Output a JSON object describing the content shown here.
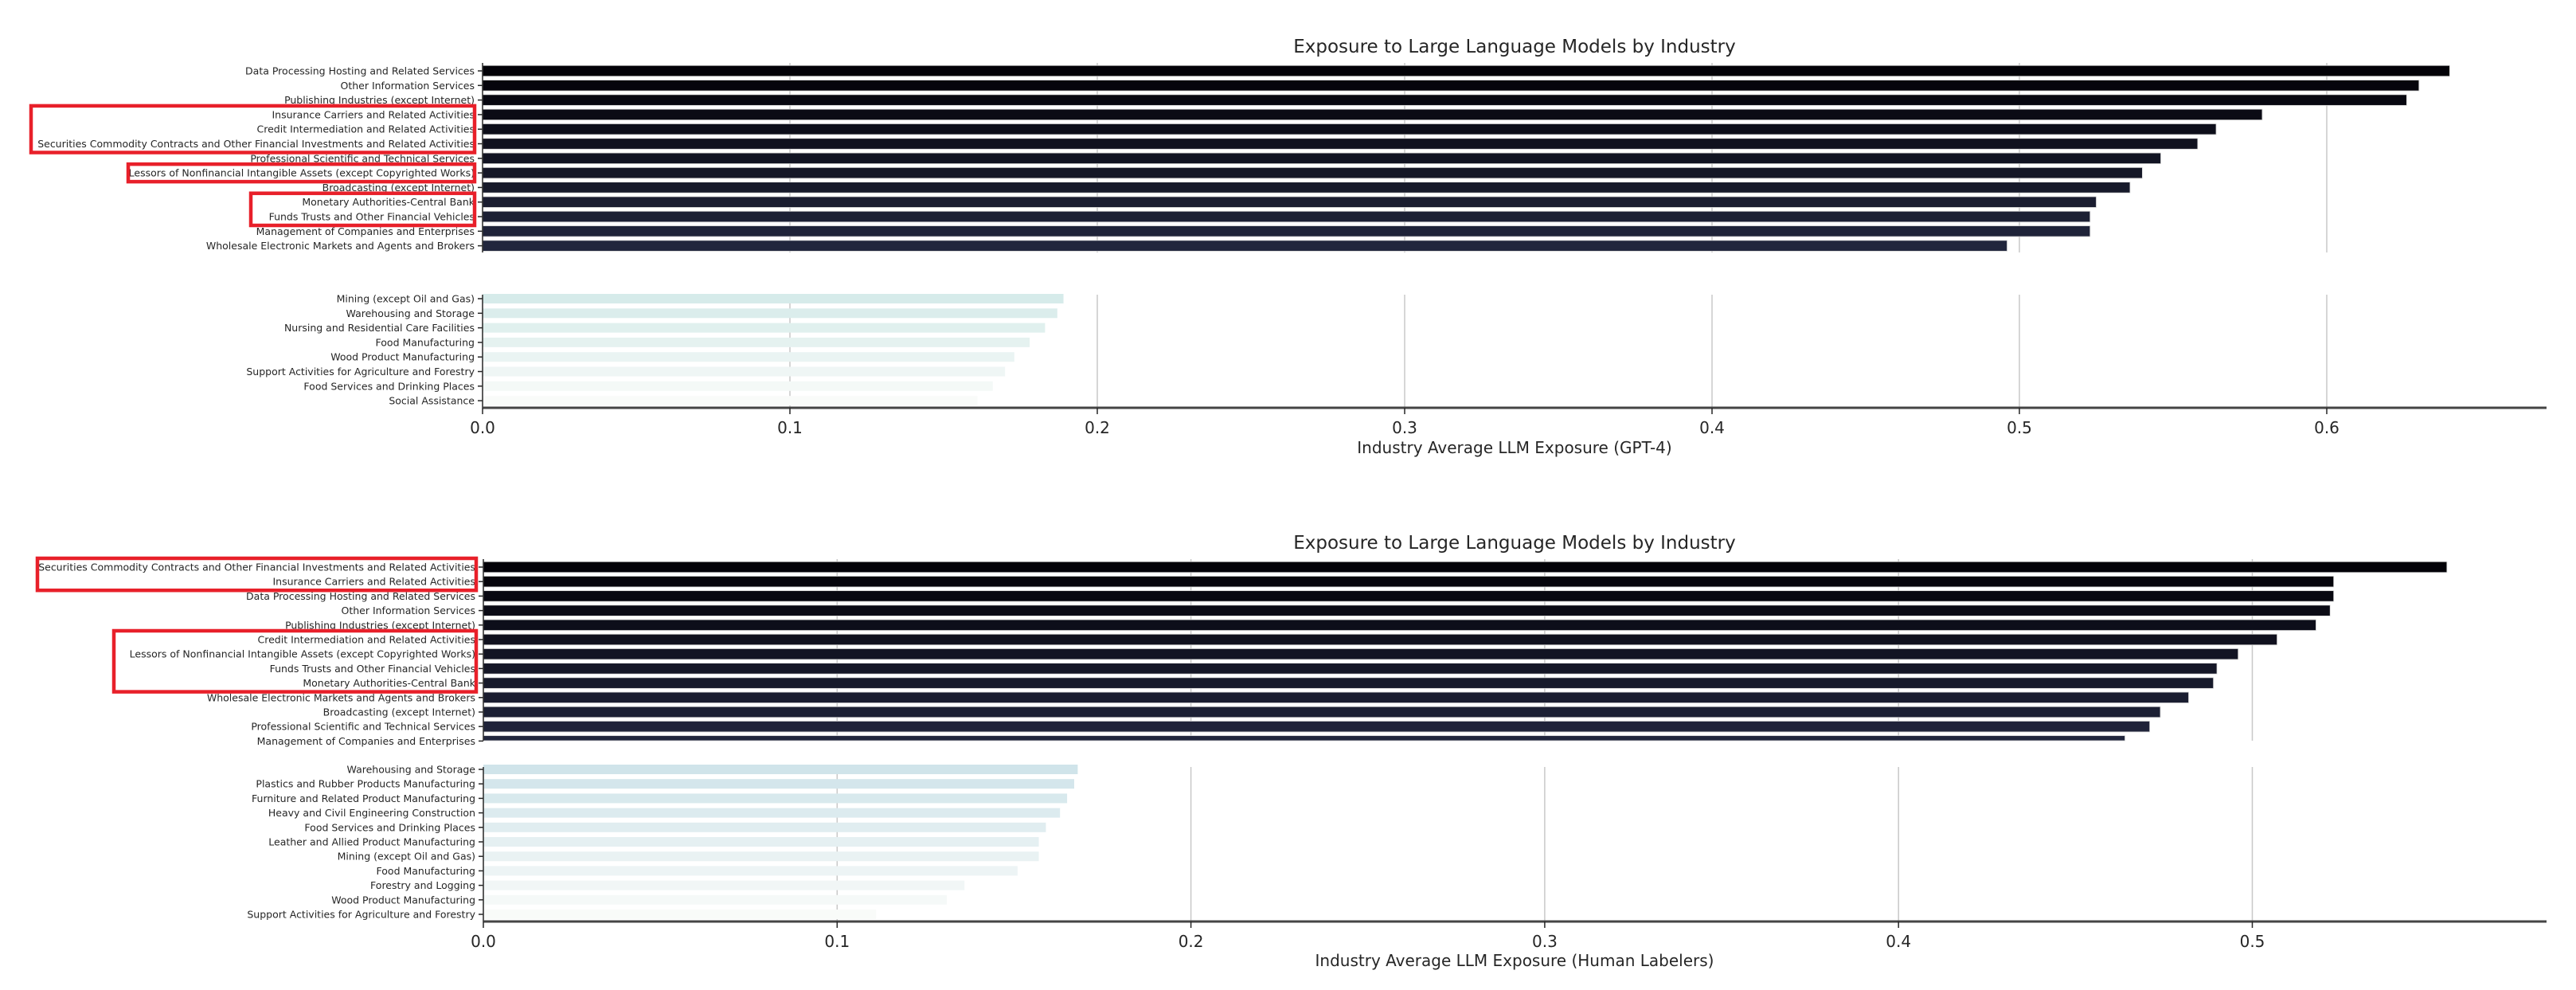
{
  "chart_data": [
    {
      "type": "bar",
      "orientation": "horizontal",
      "title": "Exposure to Large Language Models by Industry",
      "xlabel": "Industry Average LLM Exposure (GPT-4)",
      "ylabel": "",
      "xlim": [
        0,
        0.675
      ],
      "xticks": [
        "0.0",
        "0.1",
        "0.2",
        "0.3",
        "0.4",
        "0.5",
        "0.6"
      ],
      "grid": "vertical",
      "axis_break": true,
      "top_segment": {
        "categories": [
          "Data Processing Hosting and Related Services",
          "Other Information Services",
          "Publishing Industries (except Internet)",
          "Insurance Carriers and Related Activities",
          "Credit Intermediation and Related Activities",
          "Securities Commodity Contracts and Other Financial Investments and Related Activities",
          "Professional Scientific and Technical Services",
          "Lessors of Nonfinancial Intangible Assets (except Copyrighted Works)",
          "Broadcasting (except Internet)",
          "Monetary Authorities-Central Bank",
          "Funds Trusts and Other Financial Vehicles",
          "Management of Companies and Enterprises",
          "Wholesale Electronic Markets and Agents and Brokers"
        ],
        "values": [
          0.64,
          0.63,
          0.626,
          0.579,
          0.564,
          0.558,
          0.546,
          0.54,
          0.536,
          0.525,
          0.523,
          0.523,
          0.496
        ],
        "partial_next_bar_value": 0.471,
        "highlighted": [
          3,
          4,
          5,
          7,
          9,
          10
        ],
        "highlight_groups": [
          [
            3,
            5
          ],
          [
            7,
            7
          ],
          [
            9,
            10
          ]
        ]
      },
      "bottom_segment": {
        "categories": [
          "Mining (except Oil and Gas)",
          "Warehousing and Storage",
          "Nursing and Residential Care Facilities",
          "Food Manufacturing",
          "Wood Product Manufacturing",
          "Support Activities for Agriculture and Forestry",
          "Food Services and Drinking Places",
          "Social Assistance"
        ],
        "values": [
          0.189,
          0.187,
          0.183,
          0.178,
          0.173,
          0.17,
          0.166,
          0.161
        ]
      },
      "colors": {
        "dark_start": "#030208",
        "dark_end": "#21263d",
        "light_start": "#d6ebea",
        "light_end": "#f9fbf9",
        "highlight": "#e8202a"
      }
    },
    {
      "type": "bar",
      "orientation": "horizontal",
      "title": "Exposure to Large Language Models by Industry",
      "xlabel": "Industry Average LLM Exposure (Human Labelers)",
      "ylabel": "",
      "xlim": [
        0,
        0.58
      ],
      "xticks": [
        "0.0",
        "0.1",
        "0.2",
        "0.3",
        "0.4",
        "0.5"
      ],
      "grid": "vertical",
      "axis_break": true,
      "top_segment": {
        "categories": [
          "Securities Commodity Contracts and Other Financial Investments and Related Activities",
          "Insurance Carriers and Related Activities",
          "Data Processing Hosting and Related Services",
          "Other Information Services",
          "Publishing Industries (except Internet)",
          "Credit Intermediation and Related Activities",
          "Lessors of Nonfinancial Intangible Assets (except Copyrighted Works)",
          "Funds Trusts and Other Financial Vehicles",
          "Monetary Authorities-Central Bank",
          "Wholesale Electronic Markets and Agents and Brokers",
          "Broadcasting (except Internet)",
          "Professional Scientific and Technical Services",
          "Management of Companies and Enterprises"
        ],
        "values": [
          0.555,
          0.523,
          0.523,
          0.522,
          0.518,
          0.507,
          0.496,
          0.49,
          0.489,
          0.482,
          0.474,
          0.471,
          0.464
        ],
        "highlighted": [
          0,
          1,
          5,
          6,
          7,
          8
        ],
        "highlight_groups": [
          [
            0,
            1
          ],
          [
            5,
            8
          ]
        ]
      },
      "bottom_segment": {
        "categories": [
          "Warehousing and Storage",
          "Plastics and Rubber Products Manufacturing",
          "Furniture and Related Product Manufacturing",
          "Heavy and Civil Engineering Construction",
          "Food Services and Drinking Places",
          "Leather and Allied Product Manufacturing",
          "Mining (except Oil and Gas)",
          "Food Manufacturing",
          "Forestry and Logging",
          "Wood Product Manufacturing",
          "Support Activities for Agriculture and Forestry"
        ],
        "values": [
          0.168,
          0.167,
          0.165,
          0.163,
          0.159,
          0.157,
          0.157,
          0.151,
          0.136,
          0.131,
          0.111
        ]
      },
      "colors": {
        "dark_start": "#030208",
        "dark_end": "#21263d",
        "light_start": "#d0e4ea",
        "light_end": "#f9fbf9",
        "highlight": "#e8202a"
      }
    }
  ]
}
